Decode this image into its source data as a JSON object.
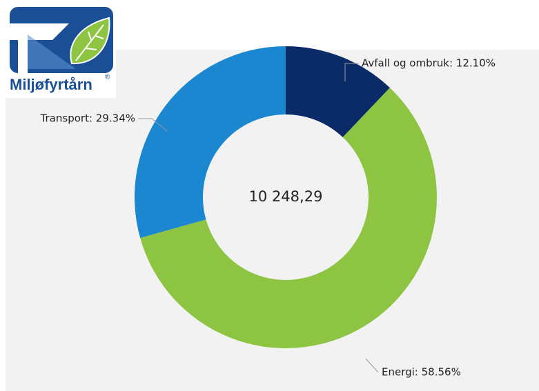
{
  "logo": {
    "text": "Miljøfyrtårn",
    "mark": "®"
  },
  "chart_data": {
    "type": "donut",
    "values": [
      12.1,
      58.56,
      29.34
    ],
    "value_labels": [
      "Avfall og ombruk: 12.10%",
      "Energi: 58.56%",
      "Transport: 29.34%"
    ],
    "colors": [
      "#0b2a68",
      "#8dc543",
      "#1a87d0"
    ],
    "center_label": "10 248,29"
  }
}
